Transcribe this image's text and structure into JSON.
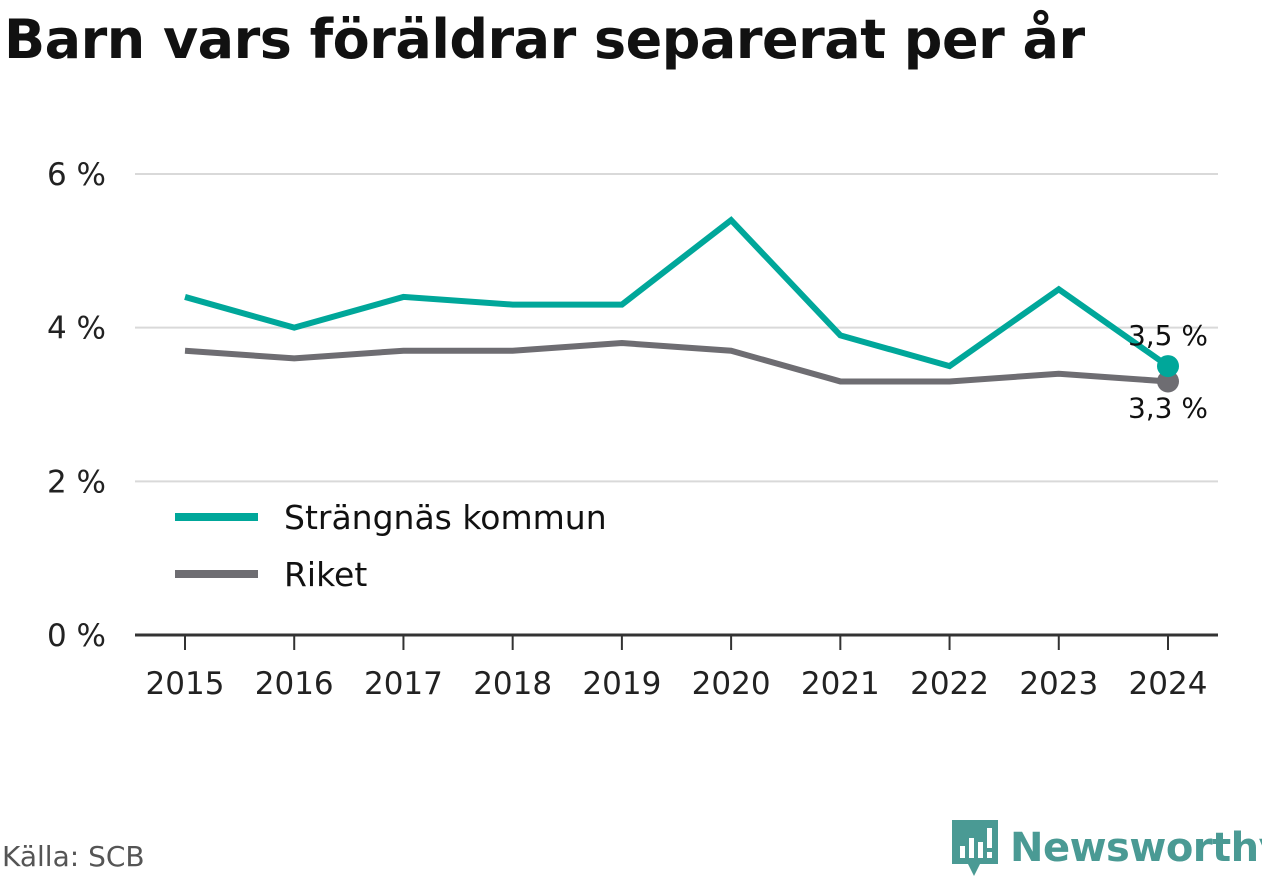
{
  "title": "Barn vars föräldrar separerat per år",
  "source": "Källa: SCB",
  "brand": "Newsworthy",
  "colors": {
    "strangnas": "#00a79a",
    "riket": "#6e6d72",
    "grid": "#d9d9d9",
    "axis": "#333333"
  },
  "chart_data": {
    "type": "line",
    "title": "Barn vars föräldrar separerat per år",
    "x": [
      "2015",
      "2016",
      "2017",
      "2018",
      "2019",
      "2020",
      "2021",
      "2022",
      "2023",
      "2024"
    ],
    "ylim": [
      0,
      6
    ],
    "yticks": [
      0,
      2,
      4,
      6
    ],
    "ytick_labels": [
      "0 %",
      "2 %",
      "4 %",
      "6 %"
    ],
    "grid": true,
    "legend": "bottom-left",
    "series": [
      {
        "name": "Strängnäs kommun",
        "color": "#00a79a",
        "values": [
          4.4,
          4.0,
          4.4,
          4.3,
          4.3,
          5.4,
          3.9,
          3.5,
          4.5,
          3.5
        ],
        "end_label": "3,5 %"
      },
      {
        "name": "Riket",
        "color": "#6e6d72",
        "values": [
          3.7,
          3.6,
          3.7,
          3.7,
          3.8,
          3.7,
          3.3,
          3.3,
          3.4,
          3.3
        ],
        "end_label": "3,3 %"
      }
    ]
  }
}
